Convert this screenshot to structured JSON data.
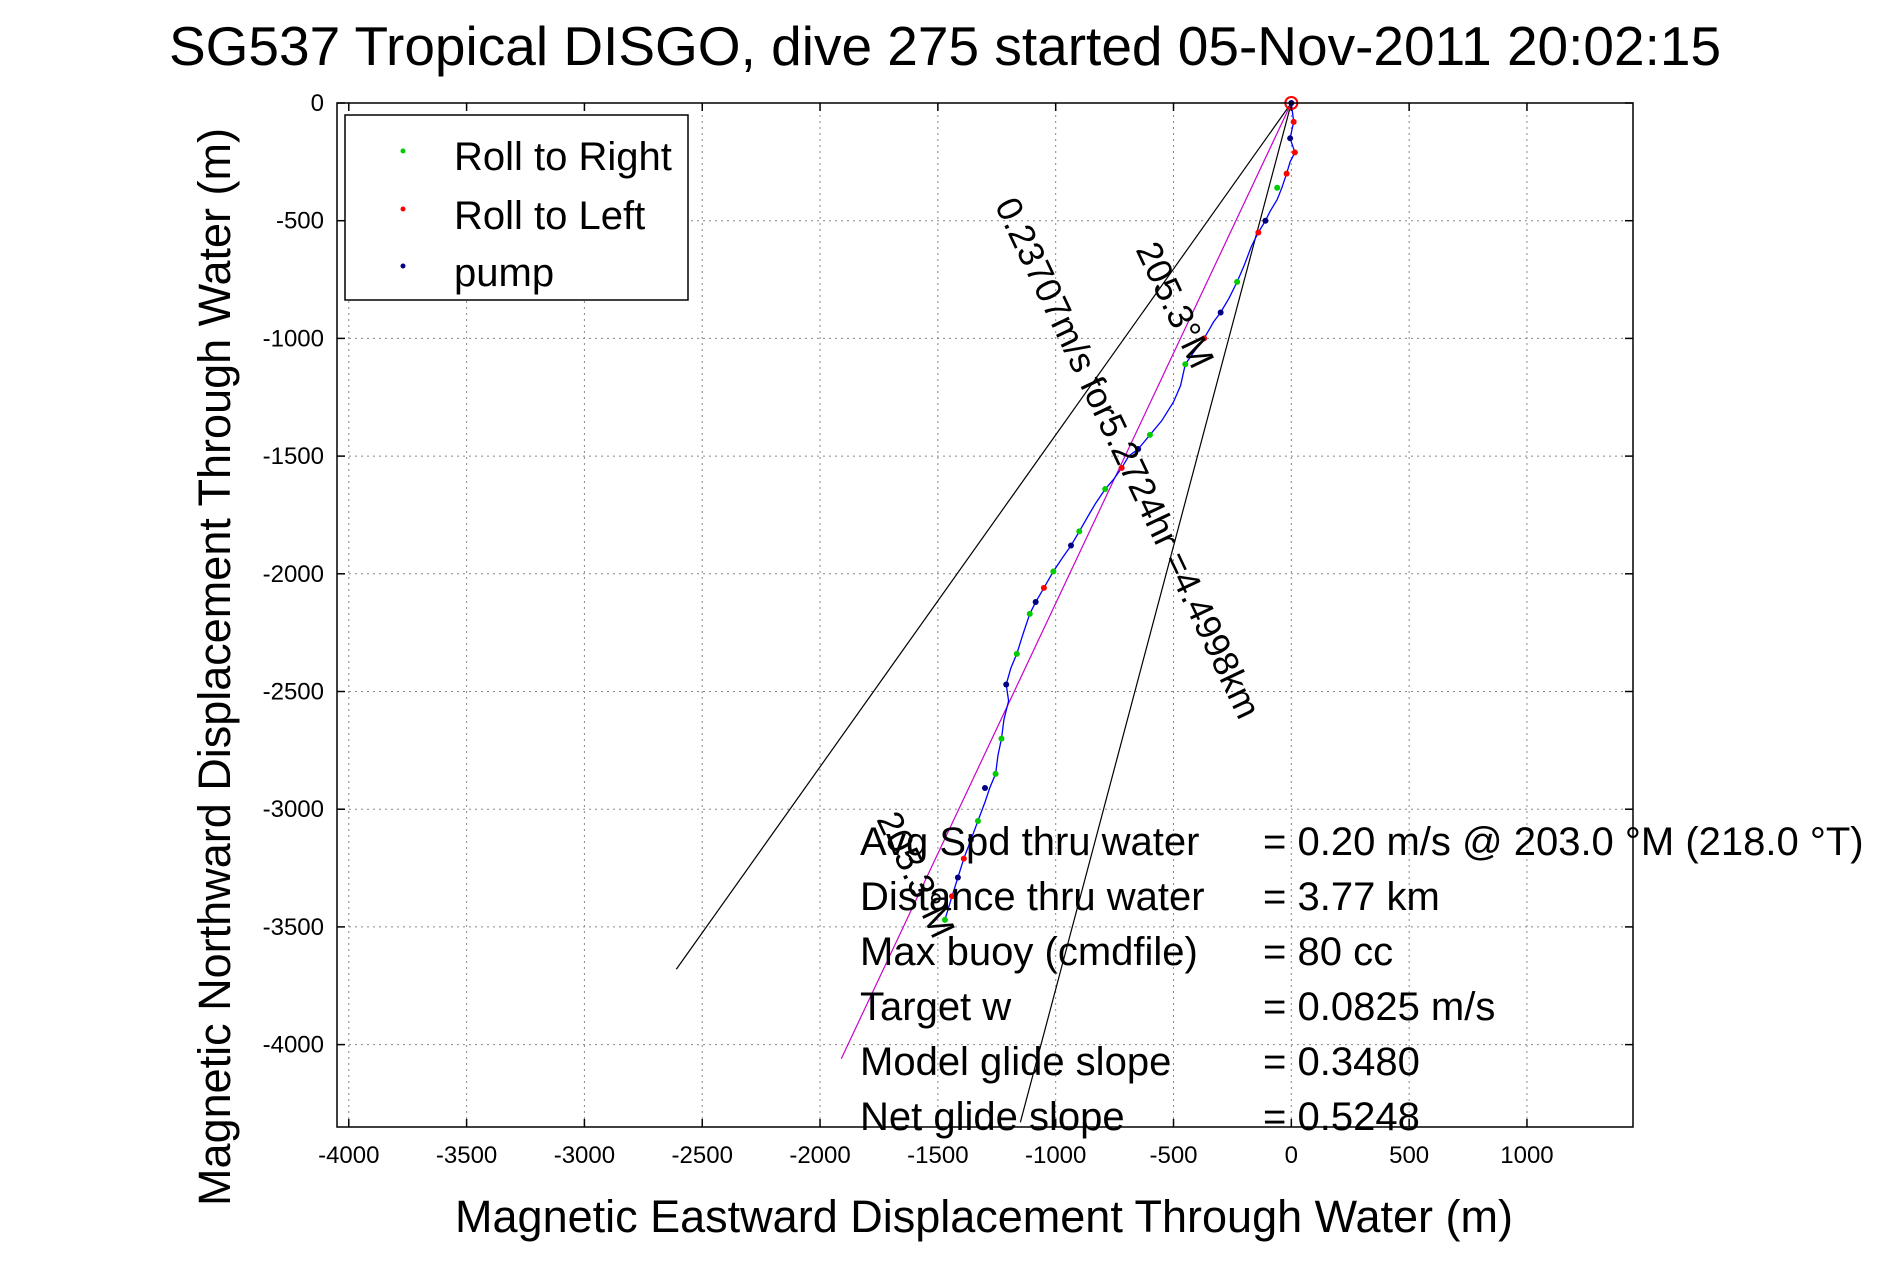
{
  "chart_data": {
    "type": "scatter",
    "title": "SG537 Tropical DISGO, dive 275 started 05-Nov-2011 20:02:15",
    "xlabel": "Magnetic Eastward Displacement Through Water (m)",
    "ylabel": "Magnetic Northward Displacement Through Water (m)",
    "xlim": [
      -4050,
      1450
    ],
    "ylim": [
      -4350,
      0
    ],
    "xticks": [
      -4000,
      -3500,
      -3000,
      -2500,
      -2000,
      -1500,
      -1000,
      -500,
      0,
      500,
      1000
    ],
    "xtick_labels": [
      "-4000",
      "-3500",
      "-3000",
      "-2500",
      "-2000",
      "-1500",
      "-1000",
      "-500",
      "0",
      "500",
      "1000"
    ],
    "yticks": [
      0,
      -500,
      -1000,
      -1500,
      -2000,
      -2500,
      -3000,
      -3500,
      -4000
    ],
    "ytick_labels": [
      "0",
      "-500",
      "-1000",
      "-1500",
      "-2000",
      "-2500",
      "-3000",
      "-3500",
      "-4000"
    ],
    "grid": true,
    "legend": {
      "position": "top-left",
      "entries": [
        {
          "label": "Roll to Right",
          "color": "#00cc00"
        },
        {
          "label": "Roll to Left",
          "color": "#ff0000"
        },
        {
          "label": "pump",
          "color": "#000080"
        }
      ]
    },
    "track": {
      "name": "track",
      "color": "#0000ff",
      "x": [
        0,
        10,
        -5,
        15,
        -5,
        -20,
        -40,
        -60,
        -90,
        -110,
        -140,
        -170,
        -200,
        -230,
        -265,
        -300,
        -330,
        -370,
        -415,
        -450,
        -470,
        -500,
        -550,
        -600,
        -650,
        -690,
        -720,
        -755,
        -790,
        -830,
        -860,
        -900,
        -935,
        -970,
        -1010,
        -1050,
        -1085,
        -1110,
        -1140,
        -1165,
        -1190,
        -1210,
        -1200,
        -1220,
        -1230,
        -1245,
        -1255,
        -1280,
        -1300,
        -1330,
        -1360,
        -1390,
        -1415,
        -1440,
        -1470
      ],
      "y": [
        0,
        -80,
        -150,
        -210,
        -250,
        -300,
        -360,
        -410,
        -460,
        -500,
        -550,
        -610,
        -690,
        -760,
        -830,
        -890,
        -930,
        -1000,
        -1060,
        -1110,
        -1200,
        -1270,
        -1350,
        -1410,
        -1470,
        -1500,
        -1550,
        -1600,
        -1640,
        -1700,
        -1750,
        -1820,
        -1880,
        -1930,
        -1990,
        -2060,
        -2120,
        -2170,
        -2260,
        -2340,
        -2400,
        -2470,
        -2540,
        -2620,
        -2700,
        -2770,
        -2850,
        -2910,
        -2970,
        -3050,
        -3130,
        -3210,
        -3290,
        -3370,
        -3470
      ]
    },
    "roll_right_points": {
      "x": [
        -60,
        -230,
        -450,
        -600,
        -790,
        -900,
        -1010,
        -1110,
        -1165,
        -1230,
        -1255,
        -1330,
        -1470
      ],
      "y": [
        -360,
        -760,
        -1110,
        -1410,
        -1640,
        -1820,
        -1990,
        -2170,
        -2340,
        -2700,
        -2850,
        -3050,
        -3470
      ]
    },
    "roll_left_points": {
      "x": [
        10,
        15,
        -20,
        -140,
        -370,
        -720,
        -1050,
        -1390,
        -1440
      ],
      "y": [
        -80,
        -210,
        -300,
        -550,
        -1000,
        -1550,
        -2060,
        -3210,
        -3370
      ]
    },
    "pump_points": {
      "x": [
        0,
        -5,
        -110,
        -300,
        -650,
        -935,
        -1085,
        -1210,
        -1300,
        -1360,
        -1415
      ],
      "y": [
        0,
        -150,
        -500,
        -890,
        -1470,
        -1880,
        -2120,
        -2470,
        -2910,
        -3130,
        -3290
      ]
    },
    "net_path": {
      "name": "net path",
      "color": "#cc00cc",
      "x": [
        0,
        -1910
      ],
      "y": [
        0,
        -4060
      ]
    },
    "heading_lines": [
      {
        "x": [
          0,
          -2610
        ],
        "y": [
          0,
          -3680
        ]
      },
      {
        "x": [
          0,
          -1150
        ],
        "y": [
          0,
          -4330
        ]
      }
    ],
    "slope_labels": [
      {
        "text": "205.3°M",
        "x": -540,
        "y": -880,
        "angle": 64.6
      },
      {
        "text": "0.23707m/s for5.2724hr =4.4998km",
        "x": -740,
        "y": -1530,
        "angle": 64.6
      },
      {
        "text": "205.3°M",
        "x": -1640,
        "y": -3300,
        "angle": 64.6
      }
    ],
    "annotations": [
      {
        "label": "Avg Spd thru water",
        "value": "=  0.20 m/s @ 203.0 °M (218.0 °T)"
      },
      {
        "label": "Distance thru water",
        "value": "=  3.77 km"
      },
      {
        "label": "Max buoy (cmdfile)",
        "value": "= 80 cc"
      },
      {
        "label": "Target w",
        "value": "= 0.0825 m/s"
      },
      {
        "label": "Model glide slope",
        "value": "= 0.3480"
      },
      {
        "label": "Net glide slope",
        "value": "= 0.5248"
      }
    ]
  }
}
